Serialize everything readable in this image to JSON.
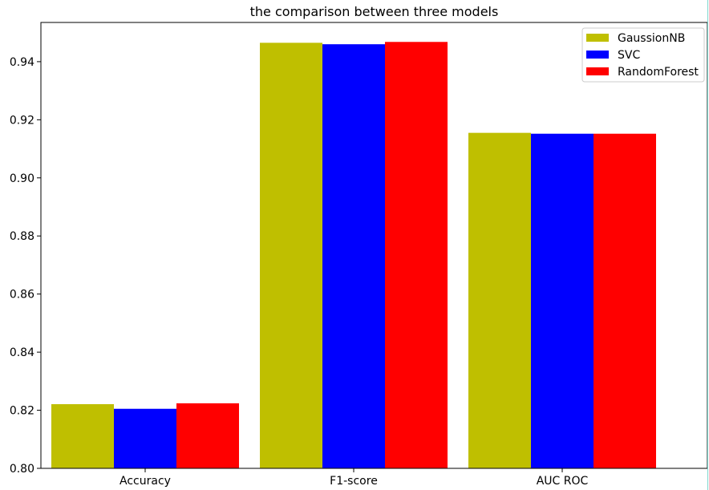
{
  "chart_data": {
    "type": "bar",
    "title": "the comparison between three models",
    "xlabel": "",
    "ylabel": "",
    "categories": [
      "Accuracy",
      "F1-score",
      "AUC ROC"
    ],
    "series": [
      {
        "name": "GaussionNB",
        "color": "#bfbf00",
        "values": [
          0.8221,
          0.9465,
          0.9155
        ]
      },
      {
        "name": "SVC",
        "color": "#0000ff",
        "values": [
          0.8205,
          0.946,
          0.9152
        ]
      },
      {
        "name": "RandomForest",
        "color": "#ff0000",
        "values": [
          0.8224,
          0.9468,
          0.9152
        ]
      }
    ],
    "ylim": [
      0.8,
      0.9535
    ],
    "yticks": [
      "0.80",
      "0.82",
      "0.84",
      "0.86",
      "0.88",
      "0.90",
      "0.92",
      "0.94"
    ],
    "grid": false,
    "legend_position": "top-right"
  }
}
